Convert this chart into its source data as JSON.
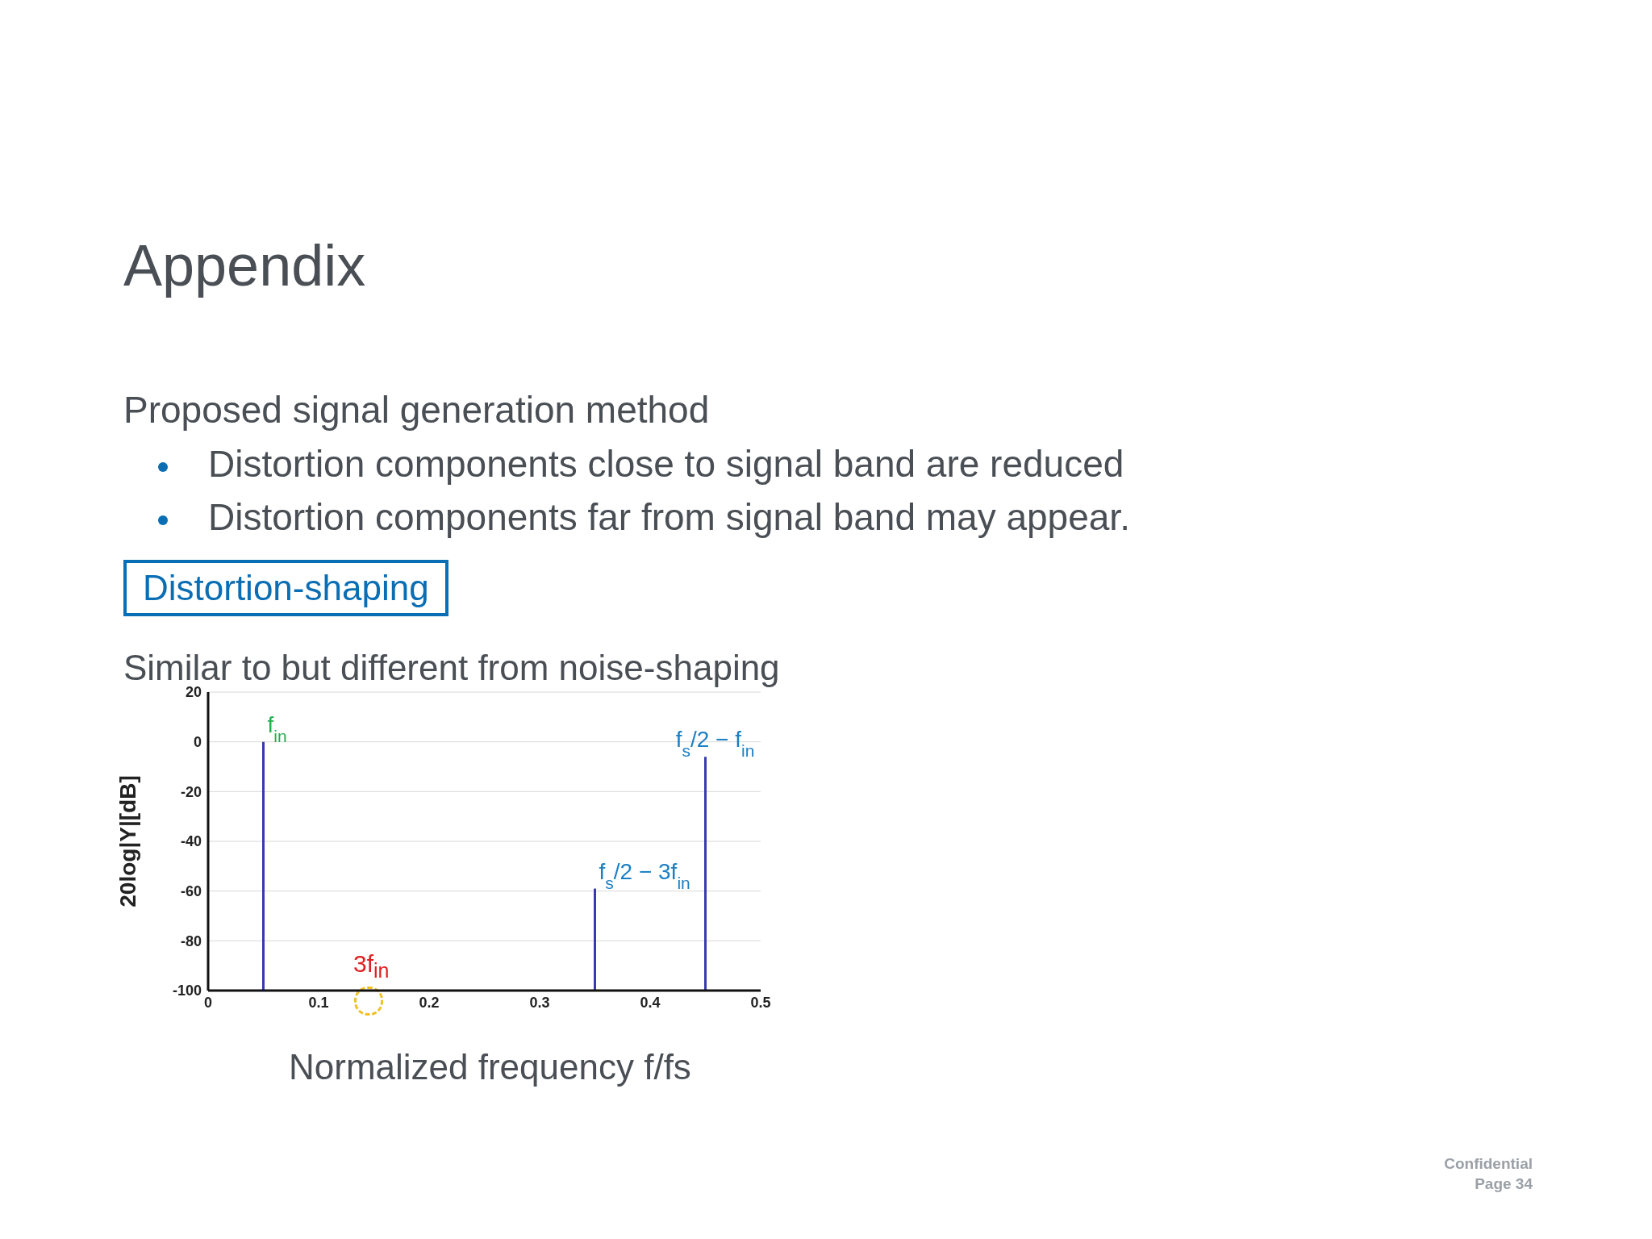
{
  "chart_data": {
    "type": "bar",
    "title": "Appendix",
    "subtitle": "Proposed signal generation method",
    "xlabel": "Normalized frequency f/fs",
    "ylabel": "20log|Y|[dB]",
    "x": [
      0.05,
      0.35,
      0.45
    ],
    "base": [
      -100,
      -100,
      -100
    ],
    "values": [
      100,
      41,
      94
    ],
    "color": "#3a3ab0",
    "xlim": [
      0,
      0.5
    ],
    "xticks": [
      0,
      0.1,
      0.2,
      0.3,
      0.4,
      0.5
    ],
    "ylim": [
      -100,
      20
    ],
    "yticks": [
      20,
      0,
      -20,
      -40,
      -60,
      -80,
      -100
    ],
    "grid": "y",
    "legend": false,
    "annotations": [
      "Distortion components close to signal band  are reduced",
      "Distortion components far from signal band may appear.",
      "Distortion-shaping",
      "Similar to but different from noise-shaping",
      "3f$_{in}$",
      "Confidential",
      "Page 34",
      {
        "text": "f$_{in}$",
        "x": 0.05,
        "y": 0
      },
      {
        "text": "f$_{s}$/2 − 3f$_{in}$",
        "x": 0.35,
        "y": -59
      },
      {
        "text": "f$_{s}$/2 − f$_{in}$",
        "x": 0.45,
        "y": -6
      }
    ]
  }
}
